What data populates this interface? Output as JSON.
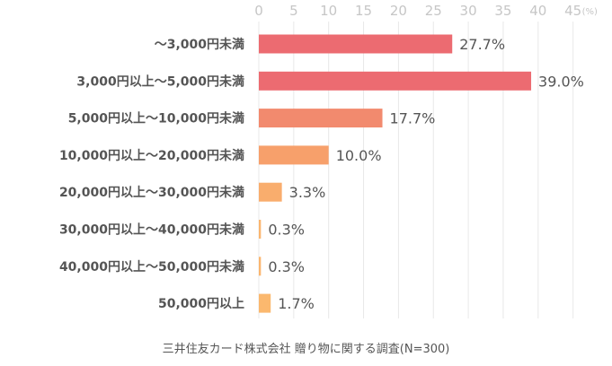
{
  "chart_data": {
    "type": "bar",
    "orientation": "horizontal",
    "categories": [
      "〜3,000円未満",
      "3,000円以上〜5,000円未満",
      "5,000円以上〜10,000円未満",
      "10,000円以上〜20,000円未満",
      "20,000円以上〜30,000円未満",
      "30,000円以上〜40,000円未満",
      "40,000円以上〜50,000円未満",
      "50,000円以上"
    ],
    "values": [
      27.7,
      39.0,
      17.7,
      10.0,
      3.3,
      0.3,
      0.3,
      1.7
    ],
    "value_labels": [
      "27.7%",
      "39.0%",
      "17.7%",
      "10.0%",
      "3.3%",
      "0.3%",
      "0.3%",
      "1.7%"
    ],
    "colors": [
      "#ec6b71",
      "#ec6b71",
      "#f28a6e",
      "#f7a06b",
      "#f9ad6d",
      "#fbb66f",
      "#fbb66f",
      "#fbb86e"
    ],
    "xlim": [
      0,
      45
    ],
    "xticks": [
      "0",
      "5",
      "10",
      "15",
      "20",
      "25",
      "30",
      "35",
      "40",
      "45"
    ],
    "xunit": "(%)",
    "grid": true,
    "source": "三井住友カード株式会社 贈り物に関する調査(N=300)"
  }
}
